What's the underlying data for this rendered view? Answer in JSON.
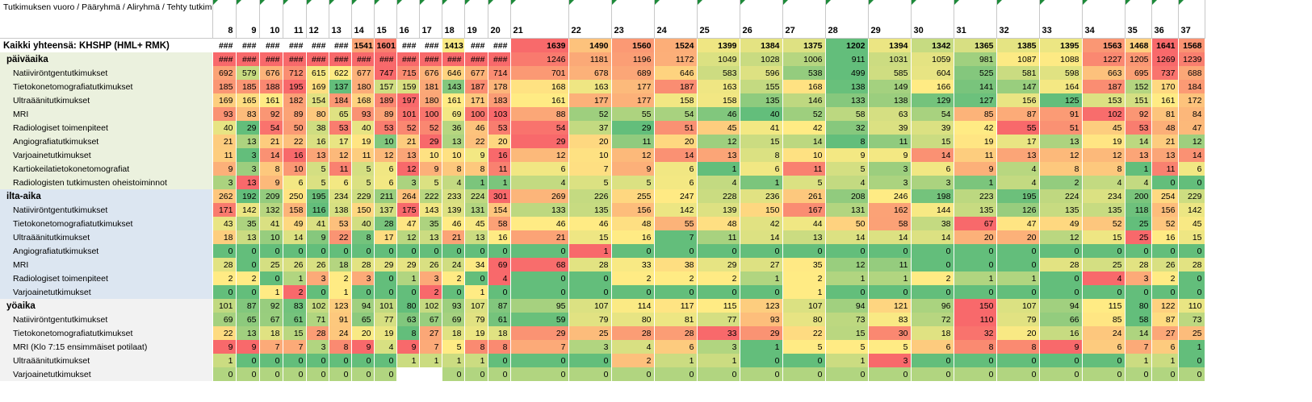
{
  "corner_label": "Tutkimuksen vuoro / Pääryhmä / Aliryhmä / Tehty tutkimus",
  "columns": [
    "8",
    "9",
    "10",
    "11",
    "12",
    "13",
    "14",
    "15",
    "16",
    "17",
    "18",
    "19",
    "20",
    "21",
    "22",
    "23",
    "24",
    "25",
    "26",
    "27",
    "28",
    "29",
    "30",
    "31",
    "32",
    "33",
    "34",
    "35",
    "36",
    "37"
  ],
  "rows": [
    {
      "type": "total",
      "label": "Kaikki yhteensä: KHSHP (HML+ RMK)",
      "values": [
        "###",
        "###",
        "###",
        "###",
        "###",
        "###",
        "1541",
        "1601",
        "###",
        "###",
        "1413",
        "###",
        "###",
        "1639",
        "1490",
        "1560",
        "1524",
        "1399",
        "1384",
        "1375",
        "1202",
        "1394",
        "1342",
        "1365",
        "1385",
        "1395",
        "1563",
        "1468",
        "1641",
        "1568"
      ]
    },
    {
      "type": "group",
      "label": "päiväaika",
      "values": [
        "###",
        "###",
        "###",
        "###",
        "###",
        "###",
        "###",
        "###",
        "###",
        "###",
        "###",
        "###",
        "###",
        "1246",
        "1181",
        "1196",
        "1172",
        "1049",
        "1028",
        "1006",
        "911",
        "1031",
        "1059",
        "981",
        "1087",
        "1088",
        "1227",
        "1205",
        "1269",
        "1239"
      ]
    },
    {
      "type": "item",
      "label": "Natiiviröntgentutkimukset",
      "values": [
        "692",
        "579",
        "676",
        "712",
        "615",
        "622",
        "677",
        "747",
        "715",
        "676",
        "646",
        "677",
        "714",
        "701",
        "678",
        "689",
        "646",
        "583",
        "596",
        "538",
        "499",
        "585",
        "604",
        "525",
        "581",
        "598",
        "663",
        "695",
        "737",
        "688"
      ]
    },
    {
      "type": "item",
      "label": "Tietokonetomografiatutkimukset",
      "values": [
        "185",
        "185",
        "188",
        "195",
        "169",
        "137",
        "180",
        "157",
        "159",
        "181",
        "143",
        "187",
        "178",
        "168",
        "163",
        "177",
        "187",
        "163",
        "155",
        "168",
        "138",
        "149",
        "166",
        "141",
        "147",
        "164",
        "187",
        "152",
        "170",
        "184"
      ]
    },
    {
      "type": "item",
      "label": "Ultraäänitutkimukset",
      "values": [
        "169",
        "165",
        "161",
        "182",
        "154",
        "184",
        "168",
        "189",
        "197",
        "180",
        "161",
        "171",
        "183",
        "161",
        "177",
        "177",
        "158",
        "158",
        "135",
        "146",
        "133",
        "138",
        "129",
        "127",
        "156",
        "125",
        "153",
        "151",
        "161",
        "172"
      ]
    },
    {
      "type": "item",
      "label": "MRI",
      "values": [
        "93",
        "83",
        "92",
        "89",
        "80",
        "65",
        "93",
        "89",
        "101",
        "100",
        "69",
        "100",
        "103",
        "88",
        "52",
        "55",
        "54",
        "46",
        "40",
        "52",
        "58",
        "63",
        "54",
        "85",
        "87",
        "91",
        "102",
        "92",
        "81",
        "84"
      ]
    },
    {
      "type": "item",
      "label": "Radiologiset toimenpiteet",
      "values": [
        "40",
        "29",
        "54",
        "50",
        "38",
        "53",
        "40",
        "53",
        "52",
        "52",
        "36",
        "46",
        "53",
        "54",
        "37",
        "29",
        "51",
        "45",
        "41",
        "42",
        "32",
        "39",
        "39",
        "42",
        "55",
        "51",
        "45",
        "53",
        "48",
        "47"
      ]
    },
    {
      "type": "item",
      "label": "Angiografiatutkimukset",
      "values": [
        "21",
        "13",
        "21",
        "22",
        "16",
        "17",
        "19",
        "10",
        "21",
        "29",
        "13",
        "22",
        "20",
        "29",
        "20",
        "11",
        "20",
        "12",
        "15",
        "14",
        "8",
        "11",
        "15",
        "19",
        "17",
        "13",
        "19",
        "14",
        "21",
        "12"
      ]
    },
    {
      "type": "item",
      "label": "Varjoainetutkimukset",
      "values": [
        "11",
        "3",
        "14",
        "16",
        "13",
        "12",
        "11",
        "12",
        "13",
        "10",
        "10",
        "9",
        "16",
        "12",
        "10",
        "12",
        "14",
        "13",
        "8",
        "10",
        "9",
        "9",
        "14",
        "11",
        "13",
        "12",
        "12",
        "13",
        "13",
        "14"
      ]
    },
    {
      "type": "item",
      "label": "Kartiokeilatietokonetomografiat",
      "values": [
        "9",
        "3",
        "8",
        "10",
        "5",
        "11",
        "5",
        "6",
        "12",
        "9",
        "8",
        "8",
        "11",
        "6",
        "7",
        "9",
        "6",
        "1",
        "6",
        "11",
        "5",
        "3",
        "6",
        "9",
        "4",
        "8",
        "8",
        "1",
        "11",
        "6"
      ]
    },
    {
      "type": "item",
      "label": "Radiologisten tutkimusten oheistoiminnot",
      "values": [
        "3",
        "13",
        "9",
        "6",
        "5",
        "6",
        "5",
        "6",
        "3",
        "5",
        "4",
        "1",
        "1",
        "4",
        "5",
        "5",
        "6",
        "4",
        "1",
        "5",
        "4",
        "3",
        "3",
        "1",
        "4",
        "2",
        "4",
        "4",
        "0",
        "0"
      ]
    },
    {
      "type": "group",
      "label": "ilta-aika",
      "values": [
        "262",
        "192",
        "209",
        "250",
        "195",
        "234",
        "229",
        "211",
        "264",
        "222",
        "233",
        "224",
        "301",
        "269",
        "226",
        "255",
        "247",
        "228",
        "236",
        "261",
        "208",
        "246",
        "198",
        "223",
        "195",
        "224",
        "234",
        "200",
        "254",
        "229"
      ]
    },
    {
      "type": "item",
      "label": "Natiiviröntgentutkimukset",
      "values": [
        "171",
        "142",
        "132",
        "158",
        "116",
        "138",
        "150",
        "137",
        "175",
        "143",
        "139",
        "131",
        "154",
        "133",
        "135",
        "156",
        "142",
        "139",
        "150",
        "167",
        "131",
        "162",
        "144",
        "135",
        "126",
        "135",
        "135",
        "118",
        "156",
        "142"
      ]
    },
    {
      "type": "item",
      "label": "Tietokonetomografiatutkimukset",
      "values": [
        "43",
        "35",
        "41",
        "49",
        "41",
        "53",
        "40",
        "28",
        "47",
        "35",
        "46",
        "45",
        "58",
        "46",
        "46",
        "48",
        "55",
        "48",
        "42",
        "44",
        "50",
        "58",
        "38",
        "67",
        "47",
        "49",
        "52",
        "25",
        "52",
        "45"
      ]
    },
    {
      "type": "item",
      "label": "Ultraäänitutkimukset",
      "values": [
        "18",
        "13",
        "10",
        "14",
        "9",
        "22",
        "8",
        "17",
        "12",
        "13",
        "21",
        "13",
        "16",
        "21",
        "15",
        "16",
        "7",
        "11",
        "14",
        "13",
        "14",
        "14",
        "14",
        "20",
        "20",
        "12",
        "15",
        "25",
        "16",
        "15"
      ]
    },
    {
      "type": "item",
      "label": "Angiografiatutkimukset",
      "values": [
        "0",
        "0",
        "0",
        "0",
        "0",
        "0",
        "0",
        "0",
        "0",
        "0",
        "0",
        "0",
        "0",
        "0",
        "1",
        "0",
        "0",
        "0",
        "0",
        "0",
        "0",
        "0",
        "0",
        "0",
        "0",
        "0",
        "0",
        "0",
        "0",
        "0"
      ]
    },
    {
      "type": "item",
      "label": "MRI",
      "values": [
        "28",
        "0",
        "25",
        "26",
        "26",
        "18",
        "28",
        "29",
        "29",
        "26",
        "24",
        "34",
        "69",
        "68",
        "28",
        "33",
        "38",
        "29",
        "27",
        "35",
        "12",
        "11",
        "0",
        "0",
        "0",
        "28",
        "25",
        "28",
        "26",
        "28"
      ]
    },
    {
      "type": "item",
      "label": "Radiologiset toimenpiteet",
      "values": [
        "2",
        "2",
        "0",
        "1",
        "3",
        "2",
        "3",
        "0",
        "1",
        "3",
        "2",
        "0",
        "4",
        "0",
        "0",
        "2",
        "2",
        "2",
        "1",
        "2",
        "1",
        "1",
        "2",
        "1",
        "1",
        "0",
        "4",
        "3",
        "2",
        "0"
      ]
    },
    {
      "type": "item",
      "label": "Varjoainetutkimukset",
      "values": [
        "0",
        "0",
        "1",
        "2",
        "0",
        "1",
        "0",
        "0",
        "0",
        "2",
        "0",
        "1",
        "0",
        "0",
        "0",
        "0",
        "0",
        "0",
        "0",
        "1",
        "0",
        "0",
        "0",
        "0",
        "0",
        "0",
        "0",
        "0",
        "0",
        "0"
      ]
    },
    {
      "type": "group",
      "label": "yöaika",
      "values": [
        "101",
        "87",
        "92",
        "83",
        "102",
        "123",
        "94",
        "101",
        "80",
        "102",
        "93",
        "107",
        "87",
        "95",
        "107",
        "114",
        "117",
        "115",
        "123",
        "107",
        "94",
        "121",
        "96",
        "150",
        "107",
        "94",
        "115",
        "80",
        "122",
        "110"
      ]
    },
    {
      "type": "item",
      "label": "Natiiviröntgentutkimukset",
      "values": [
        "69",
        "65",
        "67",
        "61",
        "71",
        "91",
        "65",
        "77",
        "63",
        "67",
        "69",
        "79",
        "61",
        "59",
        "79",
        "80",
        "81",
        "77",
        "93",
        "80",
        "73",
        "83",
        "72",
        "110",
        "79",
        "66",
        "85",
        "58",
        "87",
        "73"
      ]
    },
    {
      "type": "item",
      "label": "Tietokonetomografiatutkimukset",
      "values": [
        "22",
        "13",
        "18",
        "15",
        "28",
        "24",
        "20",
        "19",
        "8",
        "27",
        "18",
        "19",
        "18",
        "29",
        "25",
        "28",
        "28",
        "33",
        "29",
        "22",
        "15",
        "30",
        "18",
        "32",
        "20",
        "16",
        "24",
        "14",
        "27",
        "25"
      ]
    },
    {
      "type": "item",
      "label": "MRI (Klo 7:15 ensimmäiset potilaat)",
      "values": [
        "9",
        "9",
        "7",
        "7",
        "3",
        "8",
        "9",
        "4",
        "9",
        "7",
        "5",
        "8",
        "8",
        "7",
        "3",
        "4",
        "6",
        "3",
        "1",
        "5",
        "5",
        "5",
        "6",
        "8",
        "8",
        "9",
        "6",
        "7",
        "6",
        "1"
      ]
    },
    {
      "type": "item",
      "label": "Ultraäänitutkimukset",
      "values": [
        "1",
        "0",
        "0",
        "0",
        "0",
        "0",
        "0",
        "0",
        "1",
        "1",
        "1",
        "1",
        "0",
        "0",
        "0",
        "2",
        "1",
        "1",
        "0",
        "0",
        "1",
        "3",
        "0",
        "0",
        "0",
        "0",
        "0",
        "1",
        "1",
        "0"
      ]
    },
    {
      "type": "item",
      "label": "Varjoainetutkimukset",
      "values": [
        "0",
        "0",
        "0",
        "0",
        "0",
        "0",
        "0",
        "0",
        "",
        "",
        "0",
        "0",
        "0",
        "0",
        "0",
        "0",
        "0",
        "0",
        "0",
        "0",
        "0",
        "0",
        "0",
        "0",
        "0",
        "0",
        "0",
        "0",
        "0",
        "0"
      ]
    }
  ],
  "colors": {
    "low": "#63be7b",
    "mid": "#ffeb84",
    "high": "#f8696b",
    "sect_day": "#ebf1de",
    "sect_eve": "#dce6f1",
    "sect_night": "#f2f2f2"
  }
}
